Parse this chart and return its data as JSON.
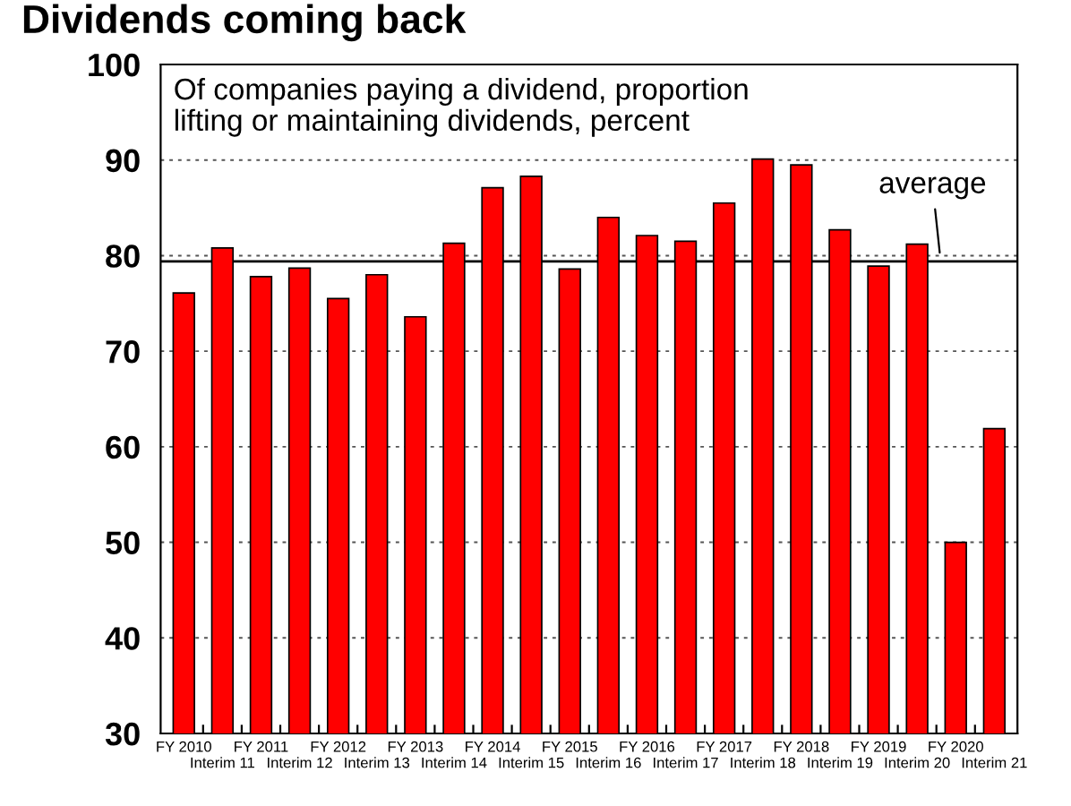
{
  "chart_data": {
    "type": "bar",
    "title": "Dividends coming back",
    "subtitle": "Of companies paying a dividend, proportion\nlifting or maintaining dividends, percent",
    "categories": [
      "FY 2010",
      "Interim 11",
      "FY 2011",
      "Interim 12",
      "FY 2012",
      "Interim 13",
      "FY 2013",
      "Interim 14",
      "FY 2014",
      "Interim 15",
      "FY 2015",
      "Interim 16",
      "FY 2016",
      "Interim 17",
      "FY 2017",
      "Interim 18",
      "FY 2018",
      "Interim 19",
      "FY 2019",
      "Interim 20",
      "FY 2020",
      "Interim 21"
    ],
    "values": [
      76.1,
      80.8,
      77.8,
      78.7,
      75.5,
      78.0,
      73.6,
      81.3,
      87.1,
      88.3,
      78.6,
      84.0,
      82.1,
      81.5,
      85.5,
      90.1,
      89.5,
      82.7,
      78.9,
      81.2,
      50,
      61.9
    ],
    "color": "#ff0000",
    "ylim": [
      30,
      100
    ],
    "yticks": [
      30,
      40,
      50,
      60,
      70,
      80,
      90,
      100
    ],
    "grid": "y",
    "ref_lines": [
      {
        "axis": "y",
        "value": 79.4,
        "label": "average",
        "color": "#000000",
        "line_style": "solid"
      }
    ]
  }
}
